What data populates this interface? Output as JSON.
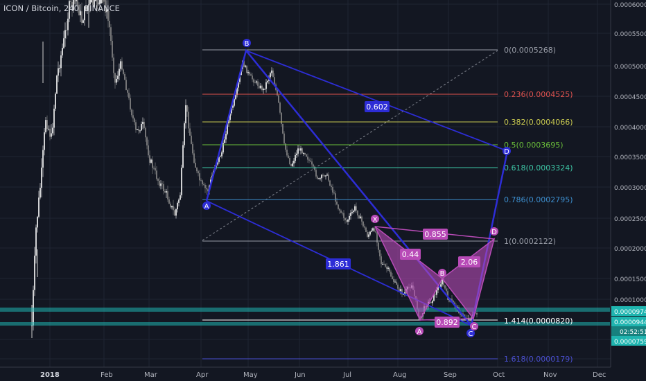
{
  "header": {
    "symbol_line": "ICON / Bitcoin, 240, BINANCE"
  },
  "colors": {
    "background": "#131722",
    "grid": "#1f2433",
    "up_candle": "#ffffff",
    "down_candle": "#8c8c8c",
    "pattern_blue": "#2d2dd6",
    "pattern_magenta": "#b84bb7",
    "support": "#1fb5b0",
    "text_axis": "#b2b5be"
  },
  "price_axis": {
    "ticks": [
      "0.0006000",
      "0.0005500",
      "0.0005000",
      "0.0004500",
      "0.0004000",
      "0.0003500",
      "0.0003000",
      "0.0002500",
      "0.0002000",
      "0.0001500",
      "0.0001000"
    ],
    "highlight_labels": [
      {
        "value": "0.0000974",
        "style": "teal"
      },
      {
        "value": "0.0000944",
        "style": "teal"
      },
      {
        "value": "02:52:51",
        "style": "teal-dark"
      },
      {
        "value": "0.0000759",
        "style": "teal"
      }
    ]
  },
  "time_axis": {
    "labels": [
      "2018",
      "Feb",
      "Mar",
      "Apr",
      "May",
      "Jun",
      "Jul",
      "Aug",
      "Sep",
      "Oct",
      "Nov",
      "Dec"
    ]
  },
  "fib_levels": [
    {
      "label": "0(0.0005268)",
      "color": "#9a9ea8"
    },
    {
      "label": "0.236(0.0004525)",
      "color": "#e0534f"
    },
    {
      "label": "0.382(0.0004066)",
      "color": "#c8c850"
    },
    {
      "label": "0.5(0.0003695)",
      "color": "#6bbf3a"
    },
    {
      "label": "0.618(0.0003324)",
      "color": "#3ec7a6"
    },
    {
      "label": "0.786(0.0002795)",
      "color": "#3d8fcf"
    },
    {
      "label": "1(0.0002122)",
      "color": "#9a9ea8"
    },
    {
      "label": "1.414(0.0000820)",
      "color": "#ffffff"
    },
    {
      "label": "1.618(0.0000179)",
      "color": "#4a4fd0"
    }
  ],
  "pattern_big": {
    "points": [
      "A",
      "B",
      "C",
      "D"
    ],
    "ratios": [
      "0.602",
      "1.861"
    ]
  },
  "pattern_bat": {
    "points": [
      "X",
      "A",
      "B",
      "C",
      "D"
    ],
    "ratios": [
      "0.855",
      "0.44",
      "2.06",
      "0.892"
    ]
  }
}
